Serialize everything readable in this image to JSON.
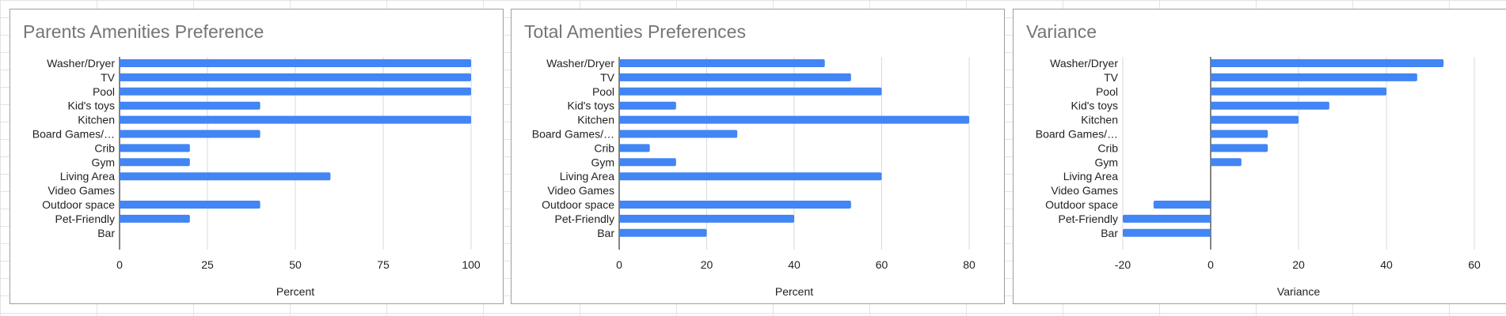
{
  "chart_data": [
    {
      "type": "bar",
      "orientation": "horizontal",
      "title": "Parents Amenities Preference",
      "xlabel": "Percent",
      "ylabel": "",
      "categories": [
        "Washer/Dryer",
        "TV",
        "Pool",
        "Kid's toys",
        "Kitchen",
        "Board Games/…",
        "Crib",
        "Gym",
        "Living Area",
        "Video Games",
        "Outdoor space",
        "Pet-Friendly",
        "Bar"
      ],
      "values": [
        100,
        100,
        100,
        40,
        100,
        40,
        20,
        20,
        60,
        0,
        40,
        20,
        0
      ],
      "xlim": [
        0,
        100
      ],
      "ticks": [
        0,
        25,
        50,
        75,
        100
      ],
      "gridlines": true,
      "color": "#4285f4"
    },
    {
      "type": "bar",
      "orientation": "horizontal",
      "title": "Total Amenties Preferences",
      "xlabel": "Percent",
      "ylabel": "",
      "categories": [
        "Washer/Dryer",
        "TV",
        "Pool",
        "Kid's toys",
        "Kitchen",
        "Board Games/…",
        "Crib",
        "Gym",
        "Living Area",
        "Video Games",
        "Outdoor space",
        "Pet-Friendly",
        "Bar"
      ],
      "values": [
        47,
        53,
        60,
        13,
        80,
        27,
        7,
        13,
        60,
        0,
        53,
        40,
        20
      ],
      "xlim": [
        0,
        80
      ],
      "ticks": [
        0,
        20,
        40,
        60,
        80
      ],
      "gridlines": true,
      "color": "#4285f4"
    },
    {
      "type": "bar",
      "orientation": "horizontal",
      "title": "Variance",
      "xlabel": "Variance",
      "ylabel": "",
      "categories": [
        "Washer/Dryer",
        "TV",
        "Pool",
        "Kid's toys",
        "Kitchen",
        "Board Games/…",
        "Crib",
        "Gym",
        "Living Area",
        "Video Games",
        "Outdoor space",
        "Pet-Friendly",
        "Bar"
      ],
      "values": [
        53,
        47,
        40,
        27,
        20,
        13,
        13,
        7,
        0,
        0,
        -13,
        -20,
        -20
      ],
      "xlim": [
        -20,
        60
      ],
      "ticks": [
        -20,
        0,
        20,
        40,
        60
      ],
      "gridlines": true,
      "color": "#4285f4"
    }
  ]
}
